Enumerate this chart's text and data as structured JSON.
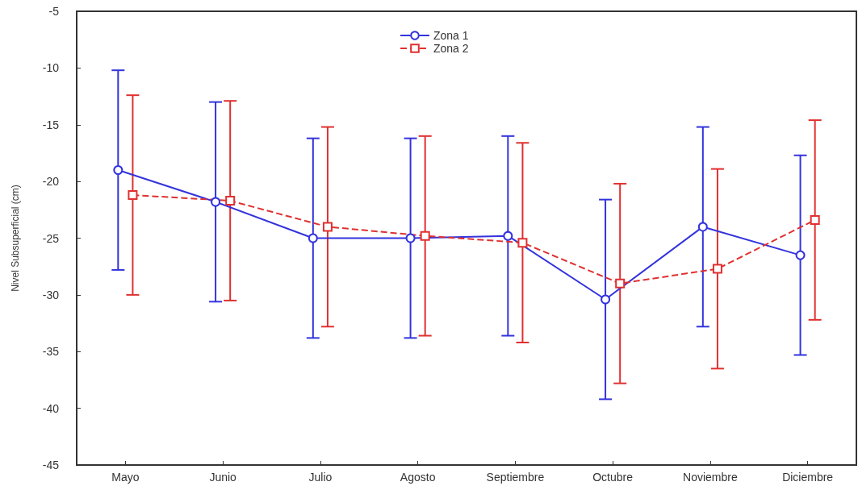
{
  "chart_data": {
    "type": "line",
    "ylabel": "Nivel Subsuperficial (cm)",
    "categories": [
      "Mayo",
      "Junio",
      "Julio",
      "Agosto",
      "Septiembre",
      "Octubre",
      "Noviembre",
      "Diciembre"
    ],
    "series": [
      {
        "name": "Zona 1",
        "color": "#3333dd",
        "marker": "circle",
        "line_style": "solid",
        "values": [
          -19.0,
          -21.8,
          -25.0,
          -25.0,
          -24.8,
          -30.4,
          -24.0,
          -26.5
        ],
        "errors": [
          8.8,
          8.8,
          8.8,
          8.8,
          8.8,
          8.8,
          8.8,
          8.8
        ]
      },
      {
        "name": "Zona 2",
        "color": "#e03030",
        "marker": "square",
        "line_style": "dashed",
        "values": [
          -21.2,
          -21.7,
          -24.0,
          -24.8,
          -25.4,
          -29.0,
          -27.7,
          -23.4
        ],
        "errors": [
          8.8,
          8.8,
          8.8,
          8.8,
          8.8,
          8.8,
          8.8,
          8.8
        ]
      }
    ],
    "ylim": [
      -45,
      -5
    ],
    "yticks": [
      -45,
      -40,
      -35,
      -30,
      -25,
      -20,
      -15,
      -10,
      -5
    ],
    "grid": false,
    "legend": "top"
  }
}
